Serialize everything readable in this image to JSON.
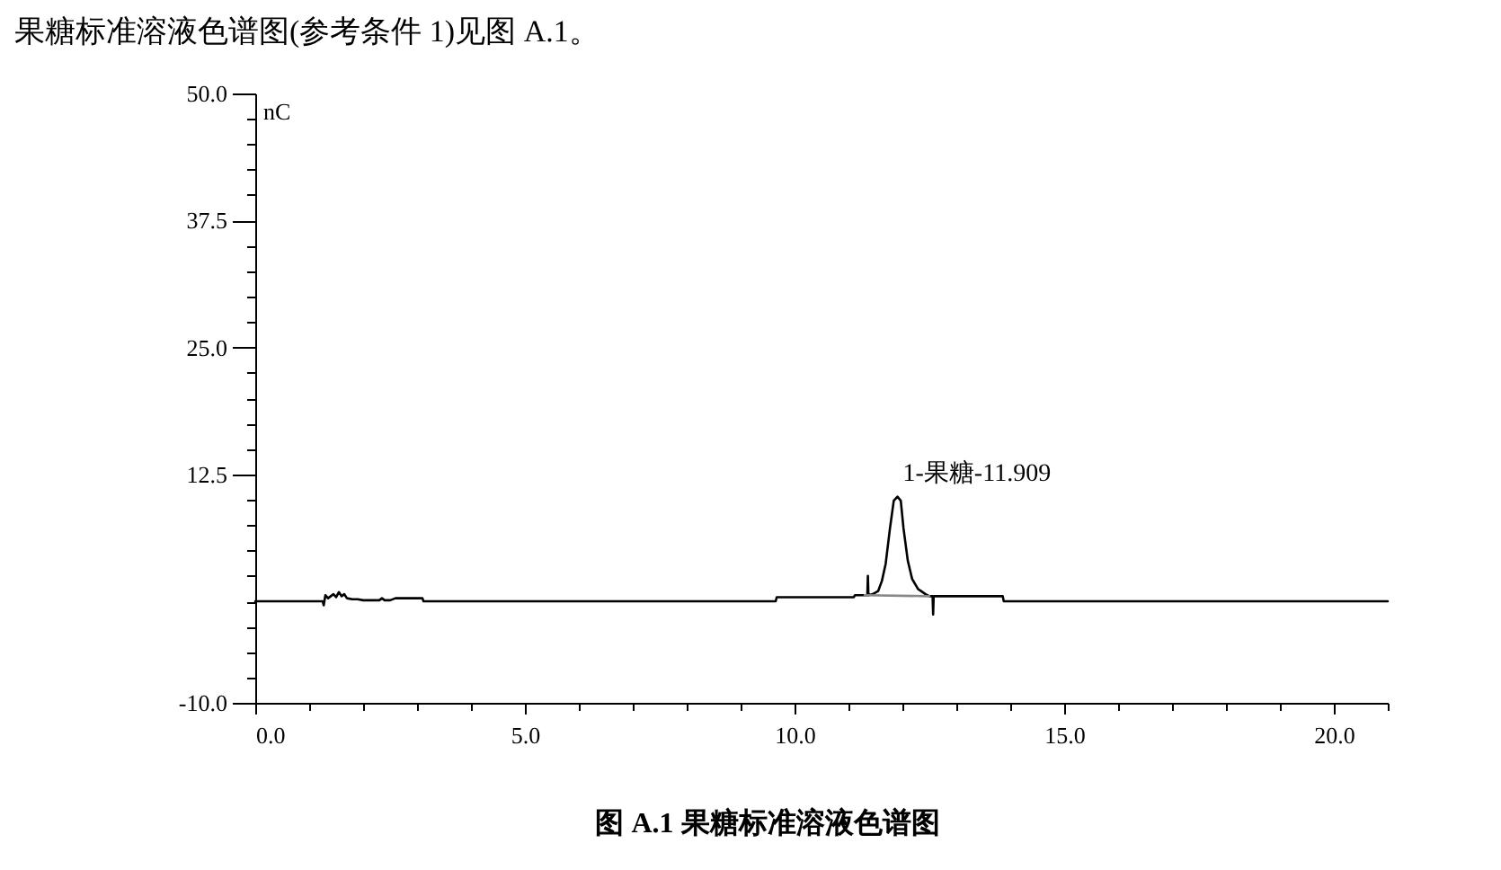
{
  "chart_data": {
    "type": "line",
    "title": "图 A.1  果糖标准溶液色谱图",
    "ylabel": "nC",
    "annotations": [
      "果糖标准溶液色谱图(参考条件 1)见图 A.1。",
      {
        "text": "1-果糖-11.909",
        "x": 11.909,
        "y": 10.3
      }
    ],
    "xlim": [
      0,
      21
    ],
    "xticks": [
      {
        "value": 0,
        "label": "0.0"
      },
      {
        "value": 1,
        "label": null
      },
      {
        "value": 2,
        "label": null
      },
      {
        "value": 3,
        "label": null
      },
      {
        "value": 4,
        "label": null
      },
      {
        "value": 5,
        "label": "5.0"
      },
      {
        "value": 6,
        "label": null
      },
      {
        "value": 7,
        "label": null
      },
      {
        "value": 8,
        "label": null
      },
      {
        "value": 9,
        "label": null
      },
      {
        "value": 10,
        "label": "10.0"
      },
      {
        "value": 11,
        "label": null
      },
      {
        "value": 12,
        "label": null
      },
      {
        "value": 13,
        "label": null
      },
      {
        "value": 14,
        "label": null
      },
      {
        "value": 15,
        "label": "15.0"
      },
      {
        "value": 16,
        "label": null
      },
      {
        "value": 17,
        "label": null
      },
      {
        "value": 18,
        "label": null
      },
      {
        "value": 19,
        "label": null
      },
      {
        "value": 20,
        "label": "20.0"
      },
      {
        "value": 21,
        "label": null
      }
    ],
    "ylim": [
      -10,
      50
    ],
    "yticks": [
      {
        "value": 50,
        "label": "50.0"
      },
      {
        "value": 47.5,
        "label": null
      },
      {
        "value": 45,
        "label": null
      },
      {
        "value": 42.5,
        "label": null
      },
      {
        "value": 40,
        "label": null
      },
      {
        "value": 37.5,
        "label": "37.5"
      },
      {
        "value": 35,
        "label": null
      },
      {
        "value": 32.5,
        "label": null
      },
      {
        "value": 30,
        "label": null
      },
      {
        "value": 27.5,
        "label": null
      },
      {
        "value": 25,
        "label": "25.0"
      },
      {
        "value": 22.5,
        "label": null
      },
      {
        "value": 20,
        "label": null
      },
      {
        "value": 17.5,
        "label": null
      },
      {
        "value": 15,
        "label": null
      },
      {
        "value": 12.5,
        "label": "12.5"
      },
      {
        "value": 10,
        "label": null
      },
      {
        "value": 7.5,
        "label": null
      },
      {
        "value": 5,
        "label": null
      },
      {
        "value": 2.5,
        "label": null
      },
      {
        "value": 0,
        "label": null
      },
      {
        "value": -2.5,
        "label": null
      },
      {
        "value": -5,
        "label": null
      },
      {
        "value": -7.5,
        "label": null
      },
      {
        "value": -10,
        "label": "-10.0"
      }
    ],
    "grid": false,
    "legend": false,
    "marker": "none",
    "line_style": "solid",
    "series": [
      {
        "color": "#000000",
        "x": [
          0,
          1.25,
          1.27,
          1.3,
          1.35,
          1.4,
          1.45,
          1.5,
          1.55,
          1.6,
          1.65,
          1.7,
          1.8,
          1.9,
          2.0,
          2.3,
          2.35,
          2.4,
          2.5,
          2.6,
          2.65,
          3.1,
          3.12,
          9.65,
          9.67,
          11.1,
          11.12,
          11.35,
          11.36,
          11.37,
          11.45,
          11.55,
          11.62,
          11.69,
          11.77,
          11.84,
          11.909,
          11.97,
          12.02,
          12.1,
          12.18,
          12.29,
          12.43,
          12.5,
          12.56,
          12.57,
          12.58,
          13.86,
          13.88,
          21
        ],
        "values": [
          0,
          0,
          -0.4,
          0.6,
          0.3,
          0.5,
          0.7,
          0.4,
          0.9,
          0.5,
          0.7,
          0.3,
          0.2,
          0.2,
          0.1,
          0.1,
          0.3,
          0.1,
          0.1,
          0.3,
          0.3,
          0.3,
          0,
          0,
          0.4,
          0.4,
          0.6,
          0.6,
          2.5,
          0.6,
          0.7,
          1.0,
          2.0,
          3.7,
          7.2,
          9.9,
          10.3,
          9.9,
          7.2,
          4.0,
          2.2,
          1.2,
          0.7,
          0.5,
          0.5,
          -1.3,
          0.5,
          0.5,
          0,
          0
        ]
      },
      {
        "color": "#888888",
        "x": [
          11.3,
          12.5
        ],
        "values": [
          0.6,
          0.5
        ]
      }
    ]
  }
}
